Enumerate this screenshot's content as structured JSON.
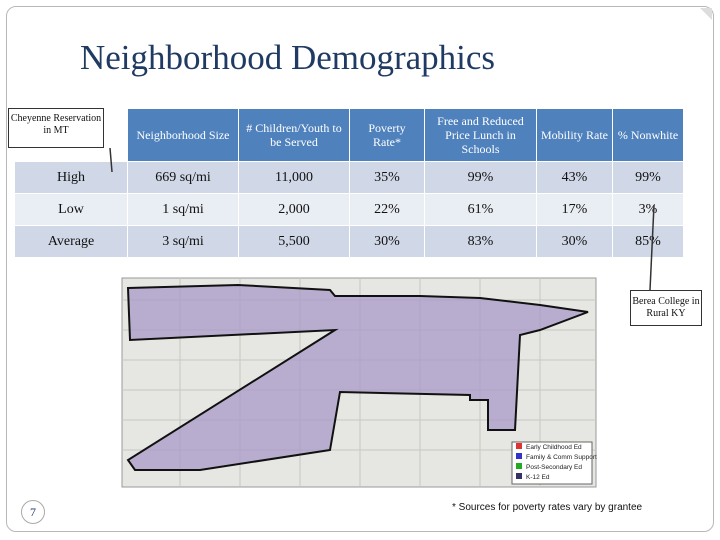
{
  "title": "Neighborhood Demographics",
  "table": {
    "header": [
      "Neighborhood Size",
      "# Children/Youth to be Served",
      "Poverty Rate*",
      "Free and Reduced Price Lunch in Schools",
      "Mobility Rate",
      "% Nonwhite"
    ],
    "rows": [
      {
        "label": "High",
        "cells": [
          "669 sq/mi",
          "11,000",
          "35%",
          "99%",
          "43%",
          "99%"
        ]
      },
      {
        "label": "Low",
        "cells": [
          "1 sq/mi",
          "2,000",
          "22%",
          "61%",
          "17%",
          "3%"
        ]
      },
      {
        "label": "Average",
        "cells": [
          "3 sq/mi",
          "5,500",
          "30%",
          "83%",
          "30%",
          "85%"
        ]
      }
    ]
  },
  "callouts": {
    "left": "Cheyenne Reservation in MT",
    "right": "Berea College in Rural KY"
  },
  "map": {
    "legend": [
      "Early Childhood Ed",
      "Family & Comm Support",
      "Post-Secondary Ed",
      "K-12 Ed"
    ]
  },
  "footnote": "* Sources for poverty rates vary by grantee",
  "page_number": "7"
}
